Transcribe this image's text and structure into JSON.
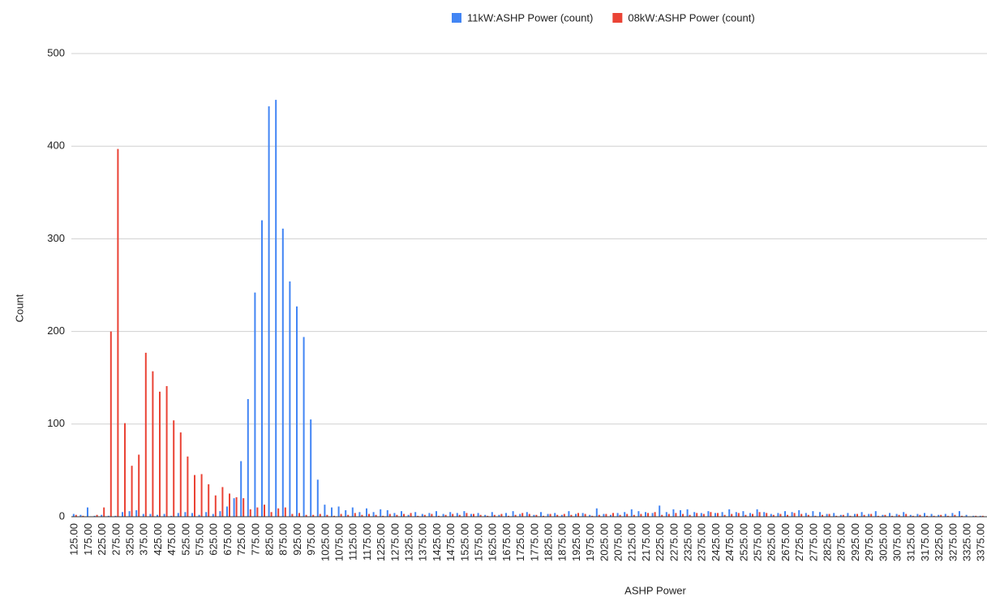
{
  "chart_data": {
    "type": "bar",
    "x_label": "ASHP Power",
    "y_label": "Count",
    "categories": [
      "125.00",
      null,
      "175.00",
      null,
      "225.00",
      null,
      "275.00",
      null,
      "325.00",
      null,
      "375.00",
      null,
      "425.00",
      null,
      "475.00",
      null,
      "525.00",
      null,
      "575.00",
      null,
      "625.00",
      null,
      "675.00",
      null,
      "725.00",
      null,
      "775.00",
      null,
      "825.00",
      null,
      "875.00",
      null,
      "925.00",
      null,
      "975.00",
      null,
      "1025.00",
      null,
      "1075.00",
      null,
      "1125.00",
      null,
      "1175.00",
      null,
      "1225.00",
      null,
      "1275.00",
      null,
      "1325.00",
      null,
      "1375.00",
      null,
      "1425.00",
      null,
      "1475.00",
      null,
      "1525.00",
      null,
      "1575.00",
      null,
      "1625.00",
      null,
      "1675.00",
      null,
      "1725.00",
      null,
      "1775.00",
      null,
      "1825.00",
      null,
      "1875.00",
      null,
      "1925.00",
      null,
      "1975.00",
      null,
      "2025.00",
      null,
      "2075.00",
      null,
      "2125.00",
      null,
      "2175.00",
      null,
      "2225.00",
      null,
      "2275.00",
      null,
      "2325.00",
      null,
      "2375.00",
      null,
      "2425.00",
      null,
      "2475.00",
      null,
      "2525.00",
      null,
      "2575.00",
      null,
      "2625.00",
      null,
      "2675.00",
      null,
      "2725.00",
      null,
      "2775.00",
      null,
      "2825.00",
      null,
      "2875.00",
      null,
      "2925.00",
      null,
      "2975.00",
      null,
      "3025.00",
      null,
      "3075.00",
      null,
      "3125.00",
      null,
      "3175.00",
      null,
      "3225.00",
      null,
      "3275.00",
      null,
      "3325.00",
      null,
      "3375.00"
    ],
    "series": [
      {
        "name": "11kW:ASHP Power (count)",
        "color": "#4285f4",
        "values": [
          3,
          2,
          10,
          1,
          2,
          1,
          1,
          5,
          6,
          7,
          3,
          3,
          2,
          3,
          1,
          4,
          5,
          4,
          2,
          5,
          3,
          6,
          11,
          20,
          60,
          127,
          242,
          320,
          443,
          450,
          311,
          254,
          227,
          194,
          105,
          40,
          13,
          10,
          11,
          7,
          10,
          5,
          9,
          5,
          8,
          7,
          4,
          6,
          2,
          5,
          3,
          4,
          6,
          3,
          5,
          4,
          6,
          3,
          4,
          2,
          5,
          2,
          4,
          6,
          3,
          5,
          2,
          5,
          3,
          4,
          2,
          6,
          3,
          4,
          2,
          9,
          3,
          2,
          4,
          5,
          8,
          6,
          5,
          4,
          12,
          5,
          8,
          7,
          8,
          5,
          4,
          6,
          4,
          5,
          8,
          5,
          6,
          4,
          8,
          5,
          3,
          4,
          6,
          5,
          7,
          4,
          6,
          5,
          3,
          4,
          2,
          4,
          3,
          5,
          3,
          6,
          2,
          4,
          3,
          5,
          2,
          3,
          4,
          3,
          2,
          3,
          4,
          6,
          2,
          1,
          1
        ]
      },
      {
        "name": "08kW:ASHP Power (count)",
        "color": "#ea4335",
        "values": [
          2,
          1,
          0,
          2,
          10,
          200,
          397,
          101,
          55,
          67,
          177,
          157,
          135,
          141,
          104,
          91,
          65,
          45,
          46,
          35,
          23,
          32,
          25,
          21,
          20,
          8,
          10,
          13,
          5,
          9,
          10,
          3,
          4,
          2,
          2,
          3,
          2,
          1,
          3,
          2,
          4,
          2,
          3,
          2,
          1,
          3,
          2,
          3,
          4,
          1,
          2,
          3,
          1,
          2,
          3,
          2,
          4,
          3,
          2,
          1,
          2,
          3,
          1,
          2,
          4,
          3,
          2,
          1,
          3,
          2,
          3,
          2,
          4,
          3,
          1,
          2,
          3,
          4,
          2,
          3,
          2,
          3,
          4,
          5,
          2,
          3,
          4,
          3,
          2,
          4,
          3,
          5,
          4,
          2,
          3,
          4,
          2,
          3,
          5,
          4,
          2,
          3,
          2,
          4,
          3,
          2,
          1,
          2,
          3,
          1,
          2,
          1,
          3,
          2,
          3,
          1,
          2,
          1,
          2,
          3,
          1,
          2,
          1,
          1,
          2,
          1,
          2,
          1,
          0,
          1,
          1
        ]
      }
    ],
    "ylim": [
      0,
      500
    ],
    "yticks": [
      0,
      100,
      200,
      300,
      400,
      500
    ],
    "grid": true,
    "legend": "top"
  }
}
